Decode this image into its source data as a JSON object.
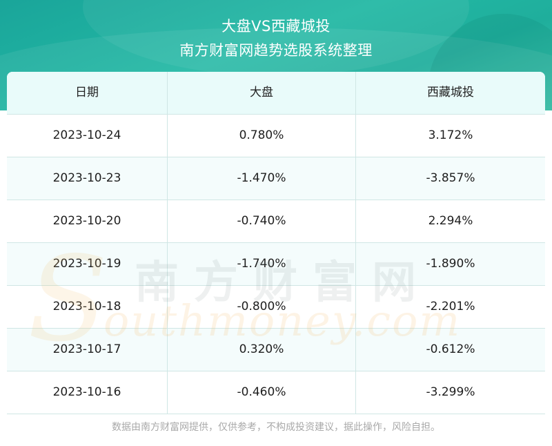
{
  "header": {
    "title": "大盘VS西藏城投",
    "subtitle": "南方财富网趋势选股系统整理"
  },
  "chart_data": {
    "type": "table",
    "columns": [
      "日期",
      "大盘",
      "西藏城投"
    ],
    "rows": [
      [
        "2023-10-24",
        "0.780%",
        "3.172%"
      ],
      [
        "2023-10-23",
        "-1.470%",
        "-3.857%"
      ],
      [
        "2023-10-20",
        "-0.740%",
        "2.294%"
      ],
      [
        "2023-10-19",
        "-1.740%",
        "-1.890%"
      ],
      [
        "2023-10-18",
        "-0.800%",
        "-2.201%"
      ],
      [
        "2023-10-17",
        "0.320%",
        "-0.612%"
      ],
      [
        "2023-10-16",
        "-0.460%",
        "-3.299%"
      ]
    ]
  },
  "watermark": {
    "cn": "南方财富网",
    "s": "S",
    "en": "outhmoney.com"
  },
  "footer": {
    "disclaimer": "数据由南方财富网提供，仅供参考，不构成投资建议，据此操作，风险自担。"
  },
  "colors": {
    "header_teal": "#1fae9c",
    "table_header_bg": "#e9fbfa",
    "row_alt_bg": "#f4fcfc",
    "grid_line": "#cfe6e4"
  }
}
